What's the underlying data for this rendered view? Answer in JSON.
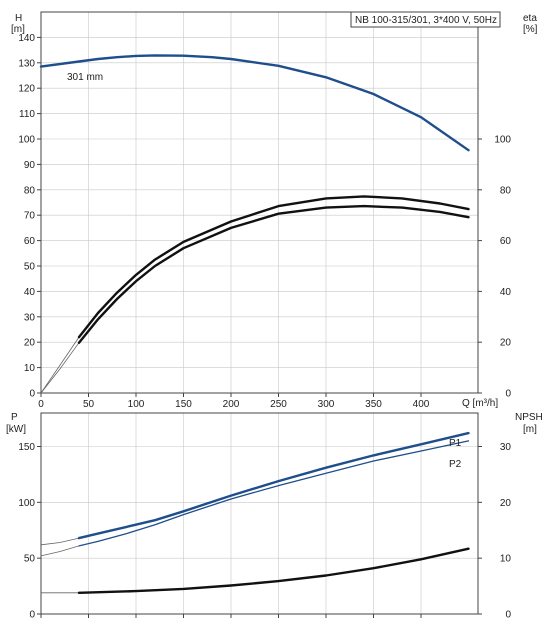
{
  "chart_data": [
    {
      "type": "line",
      "title": "NB 100-315/301, 3*400 V, 50Hz",
      "ylabel_left": [
        "H",
        "[m]"
      ],
      "ylabel_right": [
        "eta",
        "[%]"
      ],
      "xlabel": "Q [m³/h]",
      "xlim": [
        0,
        460
      ],
      "ylim_left": [
        0,
        150
      ],
      "ylim_right": [
        0,
        150
      ],
      "x_ticks": [
        "0",
        "50",
        "100",
        "150",
        "200",
        "250",
        "300",
        "350",
        "400"
      ],
      "y_ticks_left": [
        "0",
        "10",
        "20",
        "30",
        "40",
        "50",
        "60",
        "70",
        "80",
        "90",
        "100",
        "110",
        "120",
        "130",
        "140"
      ],
      "y_ticks_right": [
        "0",
        "20",
        "40",
        "60",
        "80",
        "100"
      ],
      "grid": true,
      "annotation": "301 mm",
      "series": [
        {
          "axis": "left",
          "style": "thick-blue",
          "x": [
            0,
            40,
            60,
            80,
            100,
            120,
            150,
            180,
            200,
            250,
            300,
            350,
            400,
            450
          ],
          "y": [
            128.5,
            130.5,
            131.5,
            132.2,
            132.7,
            132.9,
            132.8,
            132.2,
            131.5,
            128.8,
            124.3,
            117.7,
            108.6,
            95.6
          ]
        },
        {
          "axis": "right",
          "style": "thick-black",
          "x": [
            40,
            60,
            80,
            100,
            120,
            150,
            200,
            250,
            300,
            340,
            380,
            420,
            450
          ],
          "y": [
            19.8,
            29,
            37,
            44,
            50,
            57,
            65,
            70.6,
            73,
            73.6,
            73,
            71.3,
            69.2
          ]
        },
        {
          "axis": "right",
          "style": "thick-black",
          "x": [
            40,
            60,
            80,
            100,
            120,
            150,
            200,
            250,
            300,
            340,
            380,
            420,
            450
          ],
          "y": [
            22,
            31.5,
            39.5,
            46.5,
            52.5,
            59.5,
            67.5,
            73.6,
            76.6,
            77.4,
            76.6,
            74.6,
            72.4
          ]
        }
      ],
      "thin_series": [
        {
          "axis": "left",
          "x": [
            0,
            20,
            40
          ],
          "y": [
            128.5,
            129.6,
            130.5
          ]
        },
        {
          "axis": "right",
          "x": [
            0,
            20,
            40
          ],
          "y": [
            0,
            9.5,
            19.8
          ]
        },
        {
          "axis": "right",
          "x": [
            0,
            20,
            40
          ],
          "y": [
            0,
            11,
            22
          ]
        }
      ]
    },
    {
      "type": "line",
      "ylabel_left": [
        "P",
        "[kW]"
      ],
      "ylabel_right": [
        "NPSH",
        "[m]"
      ],
      "xlim": [
        0,
        460
      ],
      "ylim_left": [
        0,
        180
      ],
      "ylim_right": [
        0,
        36
      ],
      "y_ticks_left": [
        "0",
        "50",
        "100",
        "150"
      ],
      "y_ticks_right": [
        "0",
        "10",
        "20",
        "30"
      ],
      "grid": true,
      "series": [
        {
          "name": "P1",
          "axis": "left",
          "style": "thick-blue",
          "x": [
            40,
            60,
            90,
            120,
            150,
            200,
            250,
            300,
            350,
            400,
            450
          ],
          "y": [
            68,
            72,
            78,
            84,
            92,
            106,
            119,
            131,
            142,
            152,
            162
          ]
        },
        {
          "name": "P2",
          "axis": "left",
          "style": "thin-blue",
          "x": [
            40,
            60,
            90,
            120,
            150,
            200,
            250,
            300,
            350,
            400,
            450
          ],
          "y": [
            61,
            65,
            72,
            80,
            89,
            103,
            115,
            126,
            137,
            146,
            155
          ]
        },
        {
          "name": "",
          "axis": "right",
          "style": "thick-black",
          "x": [
            40,
            100,
            150,
            200,
            250,
            300,
            350,
            400,
            450
          ],
          "y": [
            3.8,
            4.1,
            4.5,
            5.1,
            5.9,
            6.9,
            8.2,
            9.8,
            11.7
          ]
        }
      ],
      "thin_series": [
        {
          "axis": "left",
          "x": [
            0,
            20,
            40
          ],
          "y": [
            62,
            64,
            68
          ]
        },
        {
          "axis": "left",
          "x": [
            0,
            20,
            40
          ],
          "y": [
            52,
            56,
            61
          ]
        },
        {
          "axis": "right",
          "x": [
            0,
            40
          ],
          "y": [
            3.8,
            3.8
          ]
        }
      ],
      "legend": [
        "P1",
        "P2"
      ],
      "legend_placement": "right-end"
    }
  ],
  "colors": {
    "blue": "#1f4e8c",
    "black": "#111111",
    "grid": "#c8c8c8"
  }
}
